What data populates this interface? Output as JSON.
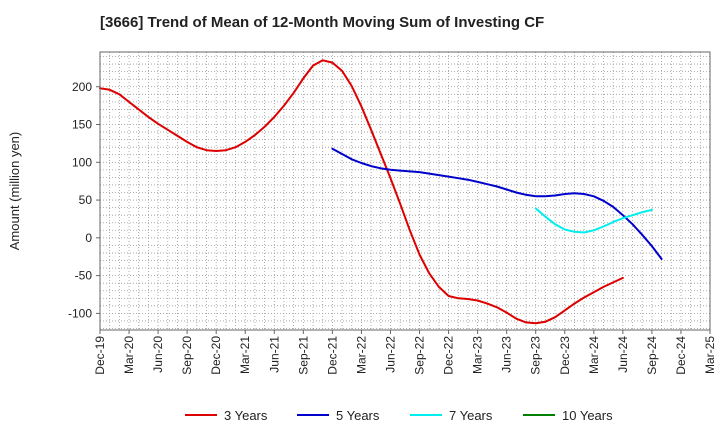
{
  "chart_data": {
    "type": "line",
    "title": "[3666]  Trend of Mean of 12-Month Moving Sum of Investing CF",
    "xlabel": "",
    "ylabel": "Amount (million yen)",
    "ylim": [
      -122,
      246
    ],
    "yticks": [
      200,
      150,
      100,
      50,
      0,
      -50,
      -100
    ],
    "x_start": "Dec-19",
    "x_end": "Mar-25",
    "x_tick_labels": [
      "Dec-19",
      "Mar-20",
      "Jun-20",
      "Sep-20",
      "Dec-20",
      "Mar-21",
      "Jun-21",
      "Sep-21",
      "Dec-21",
      "Mar-22",
      "Jun-22",
      "Sep-22",
      "Dec-22",
      "Mar-23",
      "Jun-23",
      "Sep-23",
      "Dec-23",
      "Mar-24",
      "Jun-24",
      "Sep-24",
      "Dec-24",
      "Mar-25"
    ],
    "grid": true,
    "legend_position": "bottom",
    "series": [
      {
        "name": "3 Years",
        "color": "#dd0000",
        "start_index": 0,
        "values": [
          198,
          196,
          190,
          180,
          170,
          160,
          151,
          143,
          135,
          127,
          120,
          116,
          115,
          116,
          120,
          127,
          136,
          147,
          160,
          175,
          192,
          211,
          228,
          235,
          232,
          221,
          201,
          174,
          143,
          111,
          79,
          45,
          10,
          -22,
          -47,
          -65,
          -77,
          -80,
          -81,
          -83,
          -87,
          -92,
          -99,
          -107,
          -112,
          -113,
          -111,
          -105,
          -96,
          -87,
          -79,
          -72,
          -65,
          -59,
          -53
        ]
      },
      {
        "name": "5 Years",
        "color": "#0000cc",
        "start_index": 24,
        "values": [
          118,
          111,
          104,
          99,
          95,
          92,
          90,
          89,
          88,
          87,
          85,
          83,
          81,
          79,
          77,
          74,
          71,
          68,
          64,
          60,
          57,
          55,
          55,
          56,
          58,
          59,
          58,
          55,
          49,
          41,
          30,
          18,
          4,
          -11,
          -28
        ]
      },
      {
        "name": "7 Years",
        "color": "#00eeee",
        "start_index": 45,
        "values": [
          39,
          28,
          18,
          11,
          8,
          7,
          10,
          15,
          21,
          26,
          30,
          34,
          37
        ]
      },
      {
        "name": "10 Years",
        "color": "#008000",
        "start_index": 0,
        "values": []
      }
    ]
  }
}
